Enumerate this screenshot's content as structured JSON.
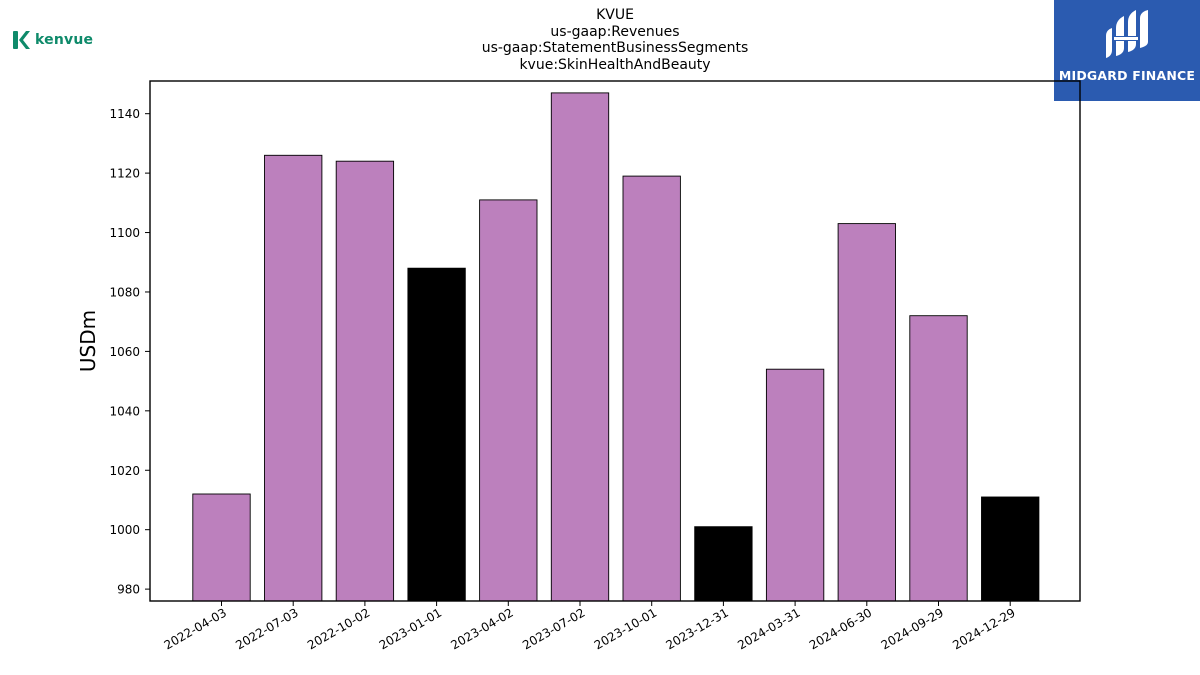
{
  "logos": {
    "left": {
      "icon": "kenvue-k-logo",
      "text": "kenvue",
      "color": "#0e8a6a"
    },
    "right": {
      "icon": "midgard-finance-logo",
      "text": "MIDGARD FINANCE",
      "background": "#2b5bb0"
    }
  },
  "chart_data": {
    "type": "bar",
    "title_lines": [
      "KVUE",
      "us-gaap:Revenues",
      "us-gaap:StatementBusinessSegments",
      "kvue:SkinHealthAndBeauty"
    ],
    "ylabel": "USDm",
    "xlabel": "",
    "categories": [
      "2022-04-03",
      "2022-07-03",
      "2022-10-02",
      "2023-01-01",
      "2023-04-02",
      "2023-07-02",
      "2023-10-01",
      "2023-12-31",
      "2024-03-31",
      "2024-06-30",
      "2024-09-29",
      "2024-12-29"
    ],
    "values": [
      1012,
      1126,
      1124,
      1088,
      1111,
      1147,
      1119,
      1001,
      1054,
      1103,
      1072,
      1011
    ],
    "highlighted": [
      false,
      false,
      false,
      true,
      false,
      false,
      false,
      true,
      false,
      false,
      false,
      true
    ],
    "ylim": [
      976,
      1151
    ],
    "yticks": [
      980,
      1000,
      1020,
      1040,
      1060,
      1080,
      1100,
      1120,
      1140
    ],
    "colors": {
      "bar": "#bc80bd",
      "highlight": "#000000",
      "edge": "#000000"
    },
    "grid": false,
    "legend": "none"
  }
}
